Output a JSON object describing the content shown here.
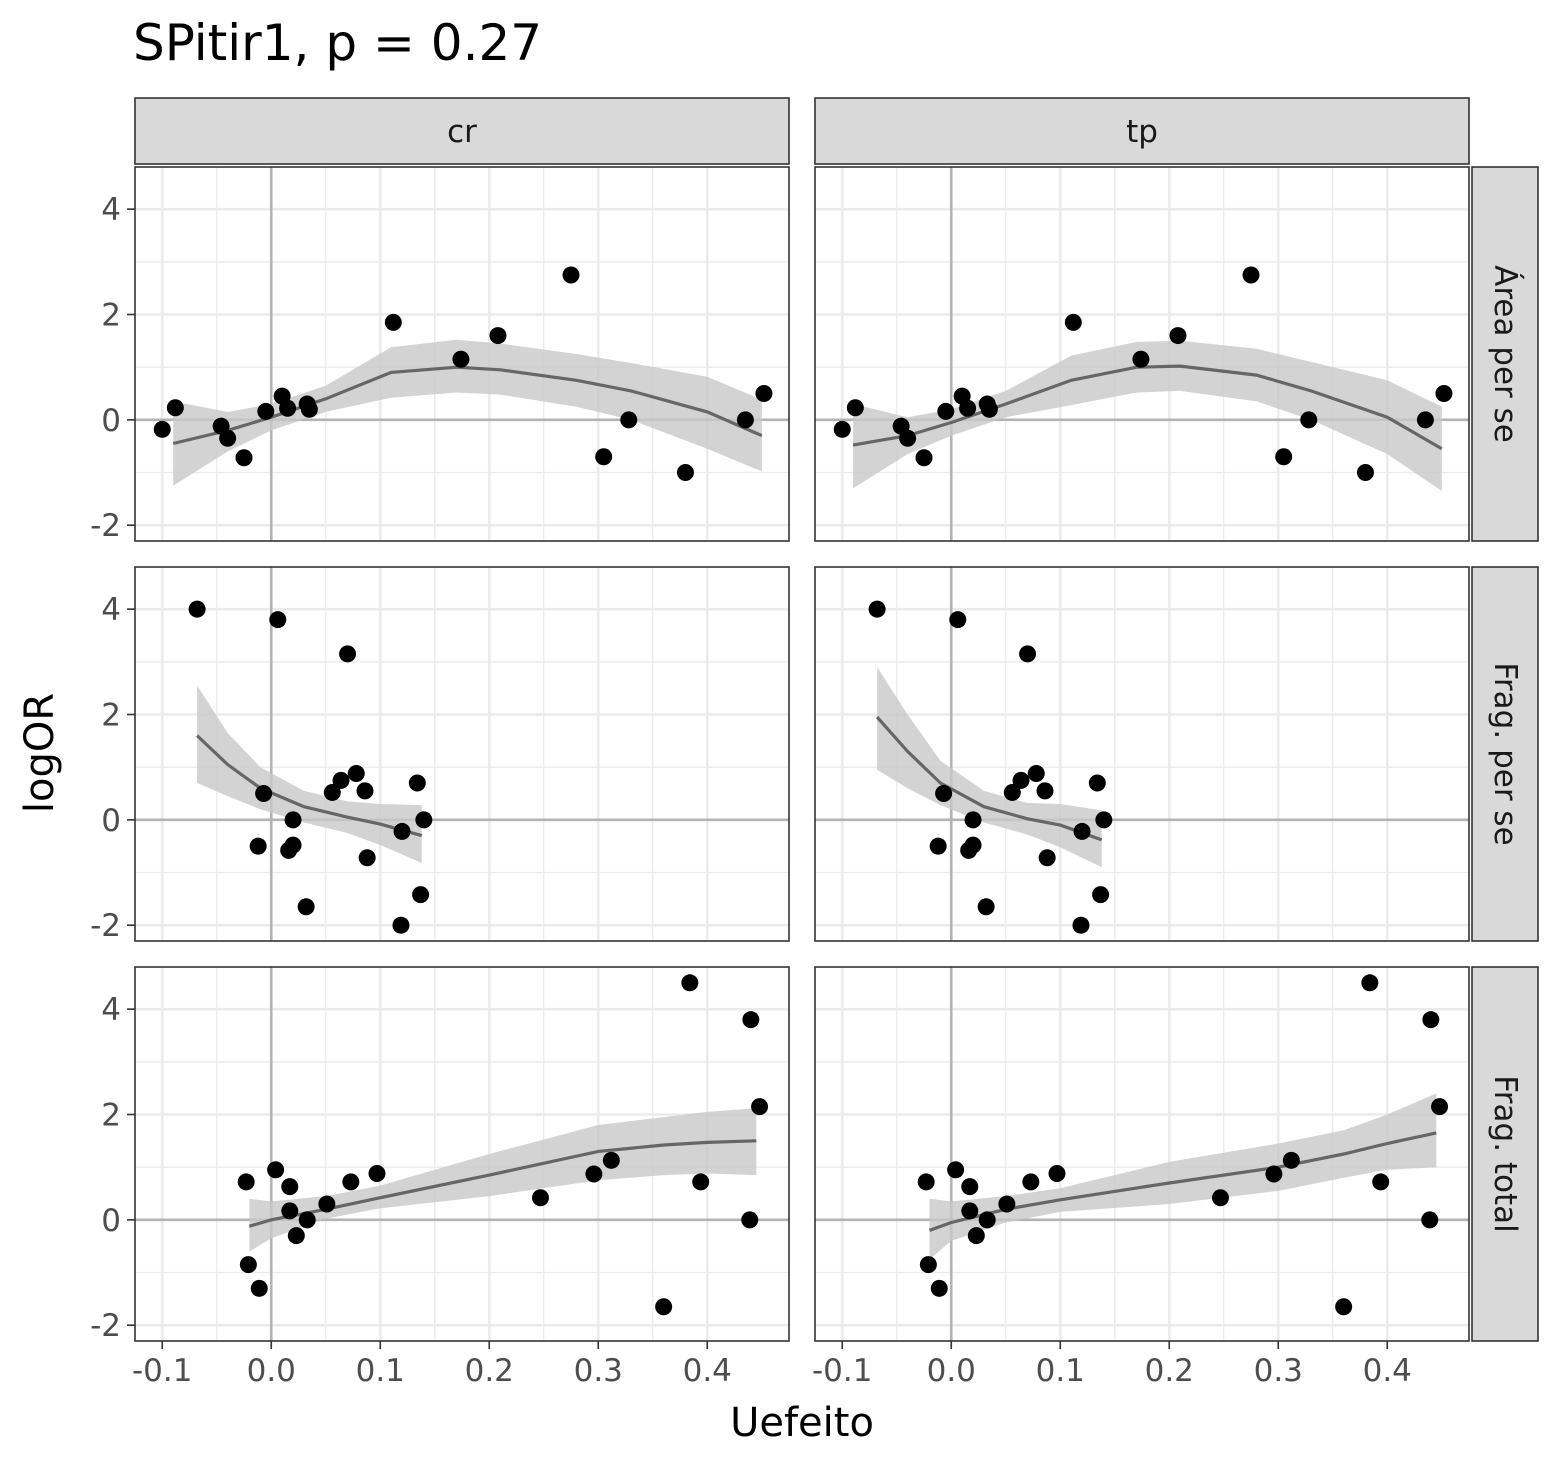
{
  "chart_data": {
    "type": "scatter",
    "title": "SPitir1, p = 0.27",
    "xlabel": "Uefeito",
    "ylabel": "logOR",
    "xlim": [
      -0.125,
      0.475
    ],
    "ylim": [
      -2.3,
      4.8
    ],
    "x_ticks": [
      -0.1,
      0.0,
      0.1,
      0.2,
      0.3,
      0.4
    ],
    "x_tick_labels": [
      "-0.1",
      "0.0",
      "0.1",
      "0.2",
      "0.3",
      "0.4"
    ],
    "y_ticks": [
      -2,
      0,
      2,
      4
    ],
    "y_tick_labels": [
      "-2",
      "0",
      "2",
      "4"
    ],
    "grid": true,
    "reference_lines": {
      "x": 0,
      "y": 0
    },
    "col_facets": [
      "cr",
      "tp"
    ],
    "row_facets": [
      "Área per se",
      "Frag. per se",
      "Frag. total"
    ],
    "colors": {
      "points": "#000000",
      "smooth_line": "#666666",
      "ribbon": "#c8c8c8",
      "strip_fill": "#d9d9d9",
      "grid": "#ebebeb",
      "reference_line": "#b3b3b3"
    },
    "panels": [
      {
        "col": "cr",
        "row": "Área per se",
        "points": [
          [
            -0.1,
            -0.18
          ],
          [
            -0.088,
            0.23
          ],
          [
            -0.046,
            -0.12
          ],
          [
            -0.04,
            -0.35
          ],
          [
            -0.025,
            -0.72
          ],
          [
            -0.005,
            0.16
          ],
          [
            0.01,
            0.45
          ],
          [
            0.015,
            0.22
          ],
          [
            0.033,
            0.3
          ],
          [
            0.035,
            0.2
          ],
          [
            0.112,
            1.85
          ],
          [
            0.174,
            1.15
          ],
          [
            0.208,
            1.6
          ],
          [
            0.275,
            2.75
          ],
          [
            0.305,
            -0.7
          ],
          [
            0.328,
            0.0
          ],
          [
            0.38,
            -1.0
          ],
          [
            0.435,
            0.0
          ],
          [
            0.452,
            0.5
          ]
        ],
        "smooth": {
          "x": [
            -0.09,
            -0.04,
            0.0,
            0.05,
            0.11,
            0.17,
            0.21,
            0.28,
            0.33,
            0.4,
            0.45
          ],
          "y": [
            -0.45,
            -0.2,
            0.05,
            0.4,
            0.9,
            1.0,
            0.95,
            0.75,
            0.55,
            0.15,
            -0.3
          ],
          "lower": [
            -1.25,
            -0.6,
            -0.2,
            0.15,
            0.42,
            0.52,
            0.48,
            0.25,
            0.0,
            -0.55,
            -0.98
          ],
          "upper": [
            0.35,
            0.15,
            0.3,
            0.65,
            1.38,
            1.52,
            1.45,
            1.25,
            1.08,
            0.82,
            0.38
          ]
        }
      },
      {
        "col": "tp",
        "row": "Área per se",
        "points": [
          [
            -0.1,
            -0.18
          ],
          [
            -0.088,
            0.23
          ],
          [
            -0.046,
            -0.12
          ],
          [
            -0.04,
            -0.35
          ],
          [
            -0.025,
            -0.72
          ],
          [
            -0.005,
            0.16
          ],
          [
            0.01,
            0.45
          ],
          [
            0.015,
            0.22
          ],
          [
            0.033,
            0.3
          ],
          [
            0.035,
            0.2
          ],
          [
            0.112,
            1.85
          ],
          [
            0.174,
            1.15
          ],
          [
            0.208,
            1.6
          ],
          [
            0.275,
            2.75
          ],
          [
            0.305,
            -0.7
          ],
          [
            0.328,
            0.0
          ],
          [
            0.38,
            -1.0
          ],
          [
            0.435,
            0.0
          ],
          [
            0.452,
            0.5
          ]
        ],
        "smooth": {
          "x": [
            -0.09,
            -0.04,
            0.0,
            0.05,
            0.11,
            0.17,
            0.21,
            0.28,
            0.33,
            0.4,
            0.45
          ],
          "y": [
            -0.48,
            -0.3,
            -0.05,
            0.3,
            0.75,
            1.0,
            1.02,
            0.85,
            0.55,
            0.05,
            -0.55
          ],
          "lower": [
            -1.3,
            -0.65,
            -0.3,
            0.05,
            0.28,
            0.52,
            0.55,
            0.35,
            0.0,
            -0.65,
            -1.35
          ],
          "upper": [
            0.3,
            0.05,
            0.2,
            0.55,
            1.22,
            1.48,
            1.5,
            1.35,
            1.1,
            0.75,
            0.25
          ]
        }
      },
      {
        "col": "cr",
        "row": "Frag. per se",
        "points": [
          [
            -0.068,
            4.0
          ],
          [
            0.006,
            3.8
          ],
          [
            0.07,
            3.15
          ],
          [
            -0.007,
            0.5
          ],
          [
            -0.012,
            -0.5
          ],
          [
            0.016,
            -0.58
          ],
          [
            0.02,
            -0.48
          ],
          [
            0.02,
            0.0
          ],
          [
            0.032,
            -1.65
          ],
          [
            0.056,
            0.52
          ],
          [
            0.064,
            0.75
          ],
          [
            0.078,
            0.88
          ],
          [
            0.086,
            0.55
          ],
          [
            0.088,
            -0.72
          ],
          [
            0.12,
            -0.22
          ],
          [
            0.134,
            0.7
          ],
          [
            0.137,
            -1.42
          ],
          [
            0.14,
            0.0
          ],
          [
            0.119,
            -2.0
          ]
        ],
        "smooth": {
          "x": [
            -0.068,
            -0.04,
            -0.01,
            0.03,
            0.07,
            0.1,
            0.138
          ],
          "y": [
            1.6,
            1.05,
            0.6,
            0.25,
            0.05,
            -0.08,
            -0.3
          ],
          "lower": [
            0.7,
            0.45,
            0.2,
            -0.05,
            -0.25,
            -0.48,
            -0.82
          ],
          "upper": [
            2.55,
            1.65,
            1.0,
            0.55,
            0.35,
            0.3,
            0.28
          ]
        }
      },
      {
        "col": "tp",
        "row": "Frag. per se",
        "points": [
          [
            -0.068,
            4.0
          ],
          [
            0.006,
            3.8
          ],
          [
            0.07,
            3.15
          ],
          [
            -0.007,
            0.5
          ],
          [
            -0.012,
            -0.5
          ],
          [
            0.016,
            -0.58
          ],
          [
            0.02,
            -0.48
          ],
          [
            0.02,
            0.0
          ],
          [
            0.032,
            -1.65
          ],
          [
            0.056,
            0.52
          ],
          [
            0.064,
            0.75
          ],
          [
            0.078,
            0.88
          ],
          [
            0.086,
            0.55
          ],
          [
            0.088,
            -0.72
          ],
          [
            0.12,
            -0.22
          ],
          [
            0.134,
            0.7
          ],
          [
            0.137,
            -1.42
          ],
          [
            0.14,
            0.0
          ],
          [
            0.119,
            -2.0
          ]
        ],
        "smooth": {
          "x": [
            -0.068,
            -0.04,
            -0.01,
            0.03,
            0.07,
            0.1,
            0.138
          ],
          "y": [
            1.95,
            1.3,
            0.7,
            0.25,
            0.02,
            -0.1,
            -0.38
          ],
          "lower": [
            0.95,
            0.6,
            0.28,
            -0.05,
            -0.28,
            -0.52,
            -0.9
          ],
          "upper": [
            2.9,
            2.0,
            1.12,
            0.55,
            0.32,
            0.3,
            0.18
          ]
        }
      },
      {
        "col": "cr",
        "row": "Frag. total",
        "points": [
          [
            -0.023,
            0.72
          ],
          [
            -0.021,
            -0.85
          ],
          [
            -0.011,
            -1.3
          ],
          [
            0.004,
            0.95
          ],
          [
            0.017,
            0.63
          ],
          [
            0.017,
            0.17
          ],
          [
            0.023,
            -0.3
          ],
          [
            0.033,
            0.0
          ],
          [
            0.051,
            0.3
          ],
          [
            0.073,
            0.72
          ],
          [
            0.097,
            0.88
          ],
          [
            0.247,
            0.42
          ],
          [
            0.296,
            0.87
          ],
          [
            0.312,
            1.13
          ],
          [
            0.36,
            -1.65
          ],
          [
            0.394,
            0.72
          ],
          [
            0.384,
            4.5
          ],
          [
            0.44,
            3.8
          ],
          [
            0.439,
            0.0
          ],
          [
            0.448,
            2.15
          ]
        ],
        "smooth": {
          "x": [
            -0.02,
            0.0,
            0.05,
            0.1,
            0.2,
            0.3,
            0.36,
            0.4,
            0.445
          ],
          "y": [
            -0.12,
            0.0,
            0.2,
            0.42,
            0.85,
            1.3,
            1.42,
            1.47,
            1.5
          ],
          "lower": [
            -0.6,
            -0.35,
            0.02,
            0.22,
            0.45,
            0.75,
            0.85,
            0.88,
            0.85
          ],
          "upper": [
            0.4,
            0.35,
            0.45,
            0.65,
            1.25,
            1.8,
            1.95,
            2.05,
            2.12
          ]
        }
      },
      {
        "col": "tp",
        "row": "Frag. total",
        "points": [
          [
            -0.023,
            0.72
          ],
          [
            -0.021,
            -0.85
          ],
          [
            -0.011,
            -1.3
          ],
          [
            0.004,
            0.95
          ],
          [
            0.017,
            0.63
          ],
          [
            0.017,
            0.17
          ],
          [
            0.023,
            -0.3
          ],
          [
            0.033,
            0.0
          ],
          [
            0.051,
            0.3
          ],
          [
            0.073,
            0.72
          ],
          [
            0.097,
            0.88
          ],
          [
            0.247,
            0.42
          ],
          [
            0.296,
            0.87
          ],
          [
            0.312,
            1.13
          ],
          [
            0.36,
            -1.65
          ],
          [
            0.394,
            0.72
          ],
          [
            0.384,
            4.5
          ],
          [
            0.44,
            3.8
          ],
          [
            0.439,
            0.0
          ],
          [
            0.448,
            2.15
          ]
        ],
        "smooth": {
          "x": [
            -0.02,
            0.0,
            0.05,
            0.1,
            0.2,
            0.3,
            0.36,
            0.4,
            0.445
          ],
          "y": [
            -0.2,
            -0.05,
            0.2,
            0.38,
            0.7,
            1.0,
            1.25,
            1.45,
            1.65
          ],
          "lower": [
            -0.75,
            -0.4,
            -0.05,
            0.15,
            0.3,
            0.55,
            0.8,
            0.95,
            1.0
          ],
          "upper": [
            0.4,
            0.35,
            0.45,
            0.6,
            1.1,
            1.45,
            1.7,
            2.0,
            2.4
          ]
        }
      }
    ]
  }
}
